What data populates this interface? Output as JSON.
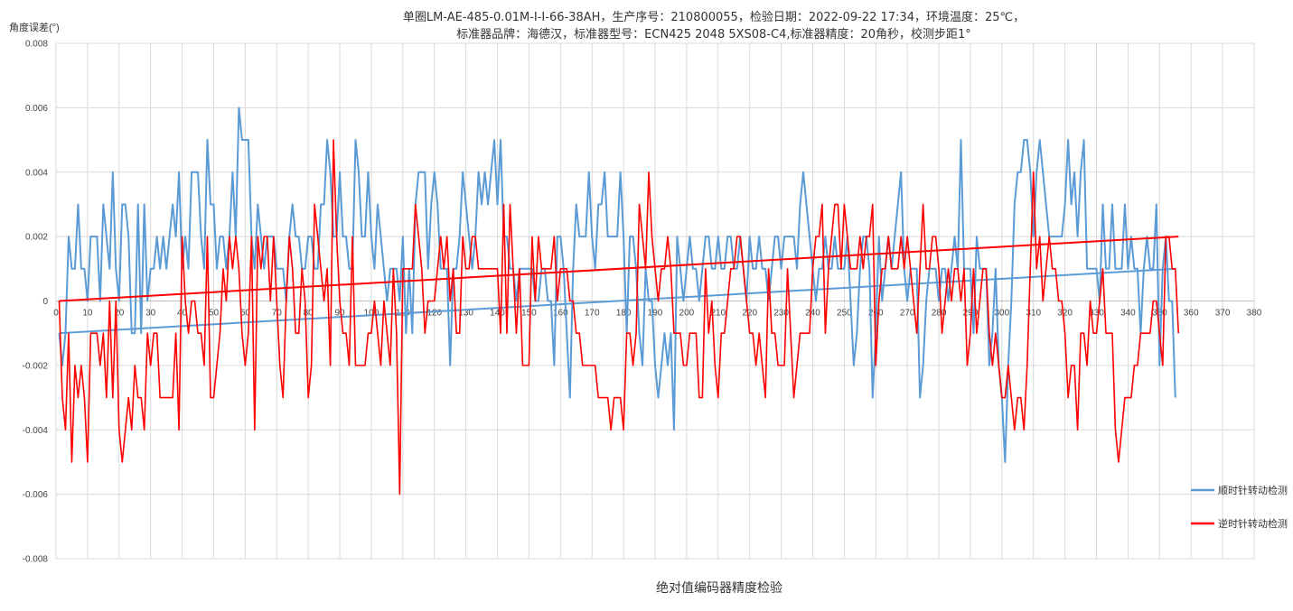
{
  "chart_data": {
    "type": "line",
    "title": "单圈LM-AE-485-0.01M-I-I-66-38AH，生产序号：210800055，检验日期：2022-09-22 17:34，环境温度：25℃，",
    "subtitle": "标准器品牌：海德汉，标准器型号：ECN425 2048 5XS08-C4,标准器精度：20角秒，校测步距1°",
    "xlabel": "绝对值编码器精度检验",
    "ylabel": "角度误差(°)",
    "xlim": [
      0,
      380
    ],
    "ylim": [
      -0.008,
      0.008
    ],
    "x_ticks": [
      "0",
      "10",
      "20",
      "30",
      "40",
      "50",
      "60",
      "70",
      "80",
      "90",
      "100",
      "110",
      "120",
      "130",
      "140",
      "150",
      "160",
      "170",
      "180",
      "190",
      "200",
      "210",
      "220",
      "230",
      "240",
      "250",
      "260",
      "270",
      "280",
      "290",
      "300",
      "310",
      "320",
      "330",
      "340",
      "350",
      "360",
      "370",
      "380"
    ],
    "y_ticks": [
      "0.008",
      "0.006",
      "0.004",
      "0.002",
      "0",
      "-0.002",
      "-0.004",
      "-0.006",
      "-0.008"
    ],
    "grid": true,
    "legend_position": "right",
    "x_start": 1,
    "x_step": 1,
    "series": [
      {
        "name": "顺时针转动检测",
        "color": "#5B9BD5",
        "values": [
          -0.001,
          -0.002,
          -0.001,
          0.002,
          0.001,
          0.001,
          0.003,
          0.001,
          0.001,
          0.0,
          0.002,
          0.002,
          0.002,
          0.0,
          0.003,
          0.002,
          0.001,
          0.004,
          0.001,
          0.0,
          0.003,
          0.003,
          0.002,
          -0.001,
          -0.001,
          0.003,
          -0.001,
          0.003,
          0.0,
          0.001,
          0.001,
          0.002,
          0.001,
          0.002,
          0.001,
          0.002,
          0.003,
          0.002,
          0.004,
          0.001,
          0.002,
          0.001,
          0.004,
          0.004,
          0.004,
          0.002,
          0.001,
          0.005,
          0.003,
          0.003,
          0.001,
          0.002,
          0.002,
          0.001,
          0.002,
          0.004,
          0.002,
          0.006,
          0.005,
          0.005,
          0.005,
          0.002,
          0.001,
          0.003,
          0.002,
          0.001,
          0.002,
          0.002,
          0.002,
          0.001,
          0.001,
          0.001,
          0.0,
          0.002,
          0.003,
          0.002,
          0.002,
          0.001,
          0.001,
          0.002,
          0.002,
          0.001,
          0.001,
          0.003,
          0.003,
          0.005,
          0.004,
          0.002,
          0.002,
          0.004,
          0.002,
          0.002,
          0.001,
          0.001,
          0.005,
          0.004,
          0.002,
          0.002,
          0.004,
          0.002,
          0.001,
          0.003,
          0.002,
          0.001,
          0.0,
          0.001,
          0.001,
          0.001,
          0.0,
          0.002,
          -0.001,
          0.001,
          -0.001,
          0.003,
          0.004,
          0.004,
          0.004,
          0.001,
          0.003,
          0.004,
          0.003,
          0.001,
          0.001,
          0.001,
          -0.002,
          0.001,
          0.001,
          0.002,
          0.004,
          0.003,
          0.002,
          0.001,
          0.002,
          0.004,
          0.003,
          0.004,
          0.003,
          0.004,
          0.005,
          0.003,
          0.005,
          0.002,
          0.002,
          0.001,
          0.001,
          0.0,
          0.001,
          0.001,
          0.001,
          0.001,
          0.001,
          0.0,
          0.0,
          0.001,
          0.001,
          0.0,
          0.0,
          -0.002,
          0.002,
          0.002,
          0.001,
          -0.001,
          -0.003,
          0.001,
          0.003,
          0.002,
          0.002,
          0.002,
          0.004,
          0.002,
          0.001,
          0.003,
          0.003,
          0.004,
          0.002,
          0.002,
          0.002,
          0.002,
          0.004,
          0.002,
          -0.001,
          0.002,
          0.002,
          0.001,
          -0.001,
          -0.002,
          0.001,
          0.0,
          0.0,
          -0.002,
          -0.003,
          -0.002,
          -0.001,
          -0.002,
          -0.001,
          -0.004,
          0.002,
          0.001,
          0.0,
          0.001,
          0.002,
          0.001,
          0.001,
          0.0,
          0.001,
          0.002,
          0.002,
          0.001,
          0.001,
          0.002,
          0.001,
          0.001,
          0.002,
          0.002,
          0.001,
          0.001,
          0.002,
          0.001,
          0.0,
          0.002,
          0.001,
          0.001,
          0.002,
          0.001,
          0.001,
          0.0,
          0.001,
          0.002,
          0.002,
          0.001,
          0.002,
          0.002,
          0.002,
          0.002,
          0.001,
          0.003,
          0.004,
          0.003,
          0.002,
          0.001,
          0.0,
          0.001,
          0.001,
          0.002,
          0.001,
          0.001,
          0.002,
          0.001,
          0.001,
          0.001,
          0.002,
          0.0,
          -0.002,
          -0.001,
          0.001,
          0.002,
          0.002,
          0.001,
          -0.003,
          -0.001,
          0.002,
          0.0,
          0.001,
          0.002,
          0.001,
          0.002,
          0.003,
          0.004,
          0.001,
          0.0,
          0.001,
          0.001,
          0.001,
          -0.003,
          -0.002,
          0.0,
          0.001,
          0.001,
          0.001,
          0.0,
          0.001,
          0.001,
          0.0,
          0.001,
          0.002,
          0.001,
          0.005,
          0.001,
          0.001,
          0.001,
          -0.001,
          0.002,
          0.001,
          0.001,
          0.001,
          -0.002,
          -0.001,
          0.001,
          -0.002,
          -0.003,
          -0.005,
          -0.002,
          0.0,
          0.003,
          0.004,
          0.004,
          0.005,
          0.005,
          0.004,
          0.002,
          0.004,
          0.005,
          0.004,
          0.003,
          0.002,
          0.002,
          0.002,
          0.002,
          0.002,
          0.003,
          0.005,
          0.003,
          0.004,
          0.002,
          0.004,
          0.005,
          0.001,
          0.001,
          0.001,
          0.001,
          0.0,
          0.003,
          0.001,
          0.001,
          0.003,
          0.001,
          0.001,
          0.001,
          0.003,
          0.001,
          0.002,
          0.001,
          0.001,
          -0.001,
          0.001,
          0.002,
          0.001,
          0.001,
          0.003,
          -0.002,
          0.001,
          0.002,
          0.0,
          0.0,
          -0.003
        ],
        "trend": [
          -0.001,
          0.001
        ]
      },
      {
        "name": "逆时针转动检测",
        "color": "#FF0000",
        "values": [
          0.0,
          -0.003,
          -0.004,
          -0.001,
          -0.005,
          -0.002,
          -0.003,
          -0.002,
          -0.003,
          -0.005,
          -0.001,
          -0.001,
          -0.001,
          -0.002,
          -0.001,
          -0.003,
          0.0,
          -0.003,
          0.0,
          -0.004,
          -0.005,
          -0.004,
          -0.003,
          -0.004,
          -0.002,
          -0.003,
          -0.003,
          -0.004,
          -0.001,
          -0.002,
          -0.001,
          -0.001,
          -0.003,
          -0.003,
          -0.003,
          -0.003,
          -0.003,
          -0.001,
          -0.004,
          0.002,
          0.0,
          -0.001,
          0.0,
          0.0,
          -0.001,
          -0.001,
          -0.002,
          0.002,
          -0.003,
          -0.003,
          -0.002,
          -0.001,
          0.001,
          0.0,
          0.002,
          0.001,
          0.002,
          0.001,
          -0.001,
          -0.002,
          -0.001,
          0.002,
          -0.004,
          0.002,
          0.001,
          0.002,
          0.002,
          0.0,
          0.002,
          0.0,
          -0.002,
          -0.003,
          0.0,
          0.002,
          0.001,
          -0.001,
          -0.001,
          0.001,
          0.0,
          -0.003,
          -0.002,
          0.003,
          0.002,
          0.001,
          0.0,
          0.001,
          -0.002,
          0.005,
          0.002,
          0.0,
          -0.001,
          -0.001,
          -0.002,
          0.002,
          -0.002,
          -0.002,
          -0.002,
          -0.002,
          -0.001,
          -0.001,
          0.0,
          -0.001,
          -0.002,
          0.0,
          -0.001,
          -0.002,
          0.001,
          -0.001,
          -0.006,
          0.001,
          0.001,
          0.001,
          0.001,
          0.003,
          0.002,
          0.001,
          -0.001,
          0.0,
          0.0,
          0.0,
          0.001,
          0.002,
          0.001,
          0.002,
          0.0,
          0.001,
          -0.001,
          -0.001,
          0.002,
          0.001,
          0.001,
          0.002,
          0.002,
          0.001,
          0.001,
          0.001,
          0.001,
          0.001,
          0.001,
          0.001,
          -0.001,
          0.003,
          -0.001,
          0.003,
          0.001,
          -0.001,
          0.001,
          -0.002,
          -0.002,
          -0.002,
          0.002,
          0.0,
          0.002,
          0.001,
          0.001,
          0.001,
          0.001,
          0.002,
          0.0,
          0.001,
          0.001,
          0.001,
          0.0,
          0.0,
          -0.001,
          -0.001,
          -0.002,
          -0.002,
          -0.002,
          -0.002,
          -0.002,
          -0.003,
          -0.003,
          -0.003,
          -0.003,
          -0.004,
          -0.003,
          -0.003,
          -0.003,
          -0.004,
          -0.001,
          -0.001,
          -0.002,
          -0.001,
          0.003,
          0.002,
          0.001,
          0.004,
          0.002,
          0.001,
          0.0,
          0.001,
          0.001,
          0.002,
          0.001,
          -0.001,
          -0.001,
          -0.001,
          -0.002,
          -0.002,
          -0.001,
          -0.001,
          -0.001,
          -0.003,
          -0.003,
          0.001,
          -0.001,
          0.0,
          -0.002,
          -0.003,
          -0.001,
          -0.001,
          0.0,
          0.001,
          0.001,
          0.002,
          0.002,
          0.001,
          0.0,
          -0.001,
          -0.001,
          -0.002,
          -0.001,
          -0.002,
          -0.003,
          0.001,
          -0.001,
          -0.001,
          -0.002,
          -0.002,
          -0.002,
          0.001,
          -0.001,
          -0.003,
          -0.002,
          -0.001,
          -0.001,
          -0.001,
          -0.001,
          0.001,
          0.002,
          0.002,
          0.003,
          -0.001,
          0.001,
          0.002,
          0.003,
          0.003,
          0.001,
          0.003,
          0.002,
          0.001,
          0.001,
          0.001,
          0.002,
          0.001,
          0.002,
          0.002,
          0.003,
          -0.002,
          0.0,
          0.001,
          0.001,
          0.002,
          0.001,
          0.001,
          0.001,
          0.002,
          0.001,
          0.002,
          0.001,
          0.0,
          -0.001,
          0.001,
          0.003,
          0.001,
          0.001,
          0.002,
          0.002,
          0.001,
          -0.001,
          0.0,
          0.001,
          0.0,
          0.001,
          0.001,
          0.0,
          0.001,
          -0.002,
          -0.001,
          0.001,
          -0.001,
          0.0,
          0.001,
          0.001,
          -0.001,
          -0.002,
          -0.001,
          -0.002,
          -0.003,
          -0.003,
          -0.002,
          -0.003,
          -0.004,
          -0.003,
          -0.003,
          -0.004,
          -0.002,
          0.001,
          0.004,
          0.001,
          0.002,
          0.0,
          0.001,
          0.002,
          0.001,
          0.001,
          0.0,
          0.0,
          -0.001,
          -0.003,
          -0.002,
          -0.002,
          -0.004,
          -0.001,
          -0.001,
          -0.002,
          0.0,
          -0.001,
          -0.001,
          0.0,
          0.001,
          -0.001,
          -0.001,
          -0.001,
          -0.004,
          -0.005,
          -0.004,
          -0.003,
          -0.003,
          -0.003,
          -0.002,
          -0.002,
          -0.001,
          -0.001,
          -0.001,
          -0.001,
          0.0,
          0.0,
          -0.001,
          -0.002,
          0.002,
          0.002,
          0.001,
          0.001,
          -0.001
        ],
        "trend": [
          0.0,
          0.002
        ]
      }
    ]
  }
}
